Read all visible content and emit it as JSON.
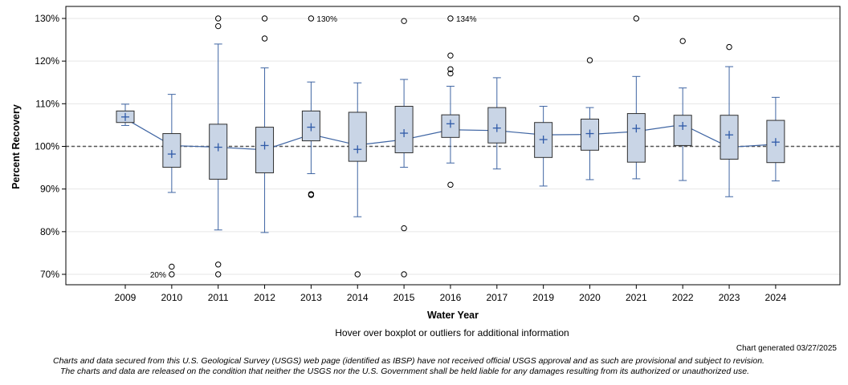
{
  "chart_data": {
    "type": "boxplot",
    "title": "",
    "xlabel": "Water Year",
    "ylabel": "Percent Recovery",
    "ylim": [
      70,
      130
    ],
    "yticks": [
      70,
      80,
      90,
      100,
      110,
      120,
      130
    ],
    "ytick_labels": [
      "70%",
      "80%",
      "90%",
      "100%",
      "110%",
      "120%",
      "130%"
    ],
    "reference_line": 100,
    "categories": [
      "2009",
      "2010",
      "2011",
      "2012",
      "2013",
      "2014",
      "2015",
      "2016",
      "2017",
      "2019",
      "2020",
      "2021",
      "2022",
      "2023",
      "2024"
    ],
    "boxes": [
      {
        "year": "2009",
        "whisker_low": 104.9,
        "q1": 105.6,
        "median": 106.5,
        "q3": 108.3,
        "whisker_high": 109.9,
        "mean": 106.9,
        "outliers": []
      },
      {
        "year": "2010",
        "whisker_low": 89.2,
        "q1": 95.1,
        "median": 100.2,
        "q3": 103.0,
        "whisker_high": 112.2,
        "mean": 98.2,
        "outliers": [
          71.8,
          70.0
        ]
      },
      {
        "year": "2011",
        "whisker_low": 80.4,
        "q1": 92.3,
        "median": 99.8,
        "q3": 105.2,
        "whisker_high": 124.0,
        "mean": 99.8,
        "outliers": [
          128.2,
          130.0,
          72.3,
          70.0
        ]
      },
      {
        "year": "2012",
        "whisker_low": 79.8,
        "q1": 93.8,
        "median": 99.2,
        "q3": 104.5,
        "whisker_high": 118.4,
        "mean": 100.2,
        "outliers": [
          125.3,
          130.0
        ]
      },
      {
        "year": "2013",
        "whisker_low": 93.6,
        "q1": 101.3,
        "median": 102.8,
        "q3": 108.3,
        "whisker_high": 115.1,
        "mean": 104.5,
        "outliers": [
          88.6,
          88.8,
          130.0
        ]
      },
      {
        "year": "2014",
        "whisker_low": 83.5,
        "q1": 96.5,
        "median": 100.3,
        "q3": 108.0,
        "whisker_high": 114.9,
        "mean": 99.3,
        "outliers": [
          70.0
        ]
      },
      {
        "year": "2015",
        "whisker_low": 95.1,
        "q1": 98.5,
        "median": 101.6,
        "q3": 109.4,
        "whisker_high": 115.7,
        "mean": 103.1,
        "outliers": [
          129.4,
          80.8,
          70.0
        ]
      },
      {
        "year": "2016",
        "whisker_low": 96.1,
        "q1": 102.1,
        "median": 103.9,
        "q3": 107.4,
        "whisker_high": 114.1,
        "mean": 105.3,
        "outliers": [
          121.3,
          118.1,
          117.1,
          130.0,
          91.0
        ]
      },
      {
        "year": "2017",
        "whisker_low": 94.7,
        "q1": 100.8,
        "median": 103.7,
        "q3": 109.1,
        "whisker_high": 116.1,
        "mean": 104.3,
        "outliers": []
      },
      {
        "year": "2019",
        "whisker_low": 90.7,
        "q1": 97.4,
        "median": 102.7,
        "q3": 105.6,
        "whisker_high": 109.4,
        "mean": 101.6,
        "outliers": []
      },
      {
        "year": "2020",
        "whisker_low": 92.2,
        "q1": 99.1,
        "median": 102.8,
        "q3": 106.4,
        "whisker_high": 109.1,
        "mean": 103.0,
        "outliers": [
          120.2
        ]
      },
      {
        "year": "2021",
        "whisker_low": 92.4,
        "q1": 96.3,
        "median": 103.5,
        "q3": 107.7,
        "whisker_high": 116.4,
        "mean": 104.2,
        "outliers": [
          130.0
        ]
      },
      {
        "year": "2022",
        "whisker_low": 92.0,
        "q1": 100.2,
        "median": 105.1,
        "q3": 107.3,
        "whisker_high": 113.7,
        "mean": 104.8,
        "outliers": [
          124.7
        ]
      },
      {
        "year": "2023",
        "whisker_low": 88.2,
        "q1": 97.0,
        "median": 99.8,
        "q3": 107.3,
        "whisker_high": 118.7,
        "mean": 102.7,
        "outliers": [
          123.3
        ]
      },
      {
        "year": "2024",
        "whisker_low": 91.9,
        "q1": 96.2,
        "median": 100.5,
        "q3": 106.1,
        "whisker_high": 111.5,
        "mean": 101.0,
        "outliers": []
      }
    ],
    "offscale_labels": [
      {
        "year": "2010",
        "text": "20%",
        "position": "bottom-left"
      },
      {
        "year": "2013",
        "text": "130%",
        "position": "top-right"
      },
      {
        "year": "2016",
        "text": "134%",
        "position": "top-right"
      }
    ],
    "colors": {
      "box_fill": "#c9d5e6",
      "box_stroke": "#2f2f2f",
      "whisker": "#3f65a3",
      "median_line": "#3f65a3",
      "mean_marker": "#2f5aa8",
      "reference": "#555555",
      "grid": "#e6e6e6"
    }
  },
  "notes": {
    "hover": "Hover over boxplot or outliers for additional information",
    "generated": "Chart generated 03/27/2025",
    "disclaimer_line1": "Charts and data secured from this U.S. Geological Survey (USGS) web page (identified as IBSP) have not received official USGS approval and as such are provisional and subject to revision.",
    "disclaimer_line2": "The charts and data are released on the condition that neither the USGS nor the U.S. Government shall be held liable for any damages resulting from its authorized or unauthorized use."
  }
}
